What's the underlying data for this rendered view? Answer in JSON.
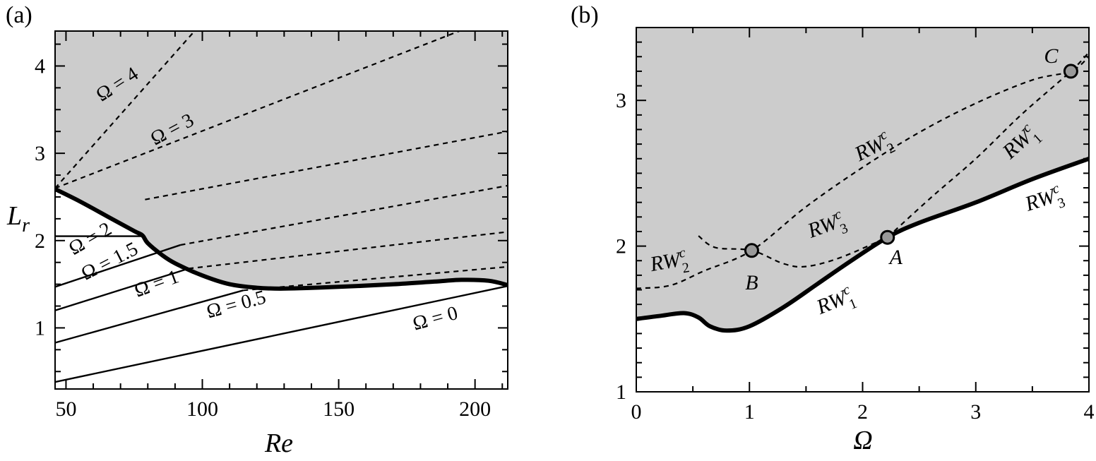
{
  "chart_data": [
    {
      "panel": "(a)",
      "type": "line",
      "xlabel": "Re",
      "ylabel": "Lr",
      "xlim": [
        46,
        212
      ],
      "ylim": [
        0.3,
        4.4
      ],
      "xticks": [
        50,
        100,
        150,
        200
      ],
      "yticks": [
        1,
        2,
        3,
        4
      ],
      "shaded_region": "above thick boundary",
      "boundary": {
        "style": "thick",
        "points": [
          [
            46,
            2.59
          ],
          [
            55,
            2.45
          ],
          [
            65,
            2.28
          ],
          [
            75,
            2.11
          ],
          [
            78,
            2.06
          ],
          [
            80,
            1.97
          ],
          [
            85,
            1.84
          ],
          [
            90,
            1.74
          ],
          [
            100,
            1.6
          ],
          [
            110,
            1.5
          ],
          [
            120,
            1.46
          ],
          [
            130,
            1.45
          ],
          [
            150,
            1.47
          ],
          [
            170,
            1.5
          ],
          [
            185,
            1.53
          ],
          [
            195,
            1.55
          ],
          [
            205,
            1.54
          ],
          [
            212,
            1.49
          ]
        ]
      },
      "series": [
        {
          "name": "Ω = 4",
          "stable": [],
          "unstable": [
            [
              46,
              2.6
            ],
            [
              100,
              4.5
            ]
          ]
        },
        {
          "name": "Ω = 3",
          "stable": [],
          "unstable": [
            [
              46,
              2.6
            ],
            [
              200,
              4.47
            ]
          ]
        },
        {
          "name": "Ω = 2",
          "stable": [
            [
              46,
              2.05
            ],
            [
              79,
              2.05
            ]
          ],
          "unstable": [
            [
              79,
              2.47
            ],
            [
              212,
              3.25
            ]
          ]
        },
        {
          "name": "Ω = 1.5",
          "stable": [
            [
              46,
              1.47
            ],
            [
              92,
              1.95
            ]
          ],
          "unstable": [
            [
              92,
              1.95
            ],
            [
              212,
              2.63
            ]
          ]
        },
        {
          "name": "Ω = 1",
          "stable": [
            [
              46,
              1.2
            ],
            [
              95,
              1.68
            ]
          ],
          "unstable": [
            [
              95,
              1.68
            ],
            [
              212,
              2.1
            ]
          ]
        },
        {
          "name": "Ω = 0.5",
          "stable": [
            [
              46,
              0.83
            ],
            [
              115,
              1.43
            ]
          ],
          "unstable": [
            [
              115,
              1.43
            ],
            [
              212,
              1.7
            ]
          ]
        },
        {
          "name": "Ω = 0",
          "stable": [
            [
              46,
              0.38
            ],
            [
              212,
              1.48
            ]
          ],
          "unstable": []
        }
      ],
      "labels": [
        {
          "text": "Ω = 4",
          "x": 70,
          "y": 3.73
        },
        {
          "text": "Ω = 3",
          "x": 90,
          "y": 3.21
        },
        {
          "text": "Ω = 2",
          "x": 60,
          "y": 1.96
        },
        {
          "text": "Ω = 1.5",
          "x": 67,
          "y": 1.7
        },
        {
          "text": "Ω = 1",
          "x": 84,
          "y": 1.44
        },
        {
          "text": "Ω = 0.5",
          "x": 113,
          "y": 1.2
        },
        {
          "text": "Ω = 0",
          "x": 186,
          "y": 1.04
        }
      ]
    },
    {
      "panel": "(b)",
      "type": "line",
      "xlabel": "Ω",
      "ylabel": "",
      "xlim": [
        0,
        4
      ],
      "ylim": [
        1,
        3.5
      ],
      "xticks": [
        0,
        1,
        2,
        3,
        4
      ],
      "yticks": [
        1,
        2,
        3
      ],
      "shaded_region": "above thick boundary",
      "boundary": {
        "style": "thick",
        "points": [
          [
            0,
            1.5
          ],
          [
            0.2,
            1.52
          ],
          [
            0.42,
            1.54
          ],
          [
            0.55,
            1.51
          ],
          [
            0.65,
            1.45
          ],
          [
            0.8,
            1.42
          ],
          [
            1,
            1.45
          ],
          [
            1.3,
            1.58
          ],
          [
            1.6,
            1.74
          ],
          [
            1.9,
            1.9
          ],
          [
            2.22,
            2.06
          ],
          [
            2.5,
            2.16
          ],
          [
            3,
            2.3
          ],
          [
            3.5,
            2.46
          ],
          [
            4,
            2.6
          ]
        ]
      },
      "dashed_curves": [
        {
          "name": "RW2c",
          "points": [
            [
              0,
              1.71
            ],
            [
              0.3,
              1.73
            ],
            [
              0.6,
              1.83
            ],
            [
              1.02,
              1.97
            ],
            [
              1.5,
              2.27
            ],
            [
              2,
              2.54
            ],
            [
              2.5,
              2.78
            ],
            [
              3,
              2.98
            ],
            [
              3.5,
              3.14
            ],
            [
              3.84,
              3.2
            ],
            [
              4,
              3.3
            ]
          ]
        },
        {
          "name": "RW1c",
          "points": [
            [
              2.22,
              2.06
            ],
            [
              2.6,
              2.33
            ],
            [
              3,
              2.6
            ],
            [
              3.4,
              2.9
            ],
            [
              3.84,
              3.2
            ],
            [
              4,
              3.33
            ]
          ]
        },
        {
          "name": "RW3c",
          "points": [
            [
              0.55,
              2.07
            ],
            [
              0.7,
              1.99
            ],
            [
              1.02,
              1.97
            ],
            [
              1.3,
              1.88
            ],
            [
              1.5,
              1.86
            ],
            [
              1.8,
              1.92
            ],
            [
              2.22,
              2.06
            ]
          ]
        }
      ],
      "points": [
        {
          "label": "A",
          "x": 2.22,
          "y": 2.06
        },
        {
          "label": "B",
          "x": 1.02,
          "y": 1.97
        },
        {
          "label": "C",
          "x": 3.84,
          "y": 3.2
        }
      ],
      "labels": [
        {
          "text": "RW2c",
          "x": 2.12,
          "y": 2.64
        },
        {
          "text": "RW1c",
          "x": 3.43,
          "y": 2.68
        },
        {
          "text": "RW3c",
          "x": 1.7,
          "y": 2.1
        },
        {
          "text": "RW3c",
          "x": 3.62,
          "y": 2.28
        },
        {
          "text": "RW2c",
          "x": 0.3,
          "y": 1.85
        },
        {
          "text": "RW1c",
          "x": 1.78,
          "y": 1.58
        }
      ]
    }
  ],
  "panels": {
    "a": {
      "label": "(a)",
      "xlabel": "Re",
      "ylabel_main": "L",
      "ylabel_sub": "r"
    },
    "b": {
      "label": "(b)",
      "xlabel": "Ω"
    }
  },
  "colors": {
    "shade": "#cccccc",
    "line": "#000000",
    "point_fill": "#999999"
  }
}
